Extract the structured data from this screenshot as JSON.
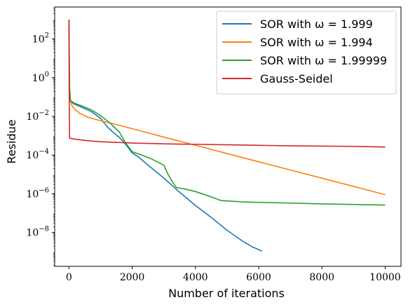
{
  "chart_data": {
    "type": "line",
    "title": "",
    "xlabel": "Number of iterations",
    "ylabel": "Residue",
    "yscale": "log",
    "xlim": [
      -450,
      10500
    ],
    "ylim_log10": [
      -9.75,
      3.65
    ],
    "x_ticks": [
      0,
      2000,
      4000,
      6000,
      8000,
      10000
    ],
    "x_tick_labels": [
      "0",
      "2000",
      "4000",
      "6000",
      "8000",
      "10000"
    ],
    "y_tick_exponents": [
      2,
      0,
      -2,
      -4,
      -6,
      -8
    ],
    "y_tick_labels": [
      "10^2",
      "10^0",
      "10^-2",
      "10^-4",
      "10^-6",
      "10^-8"
    ],
    "legend_position": "top-right",
    "grid": false,
    "series": [
      {
        "name": "SOR with ω = 1.999",
        "color": "#1f77b4",
        "points": [
          [
            0,
            1000
          ],
          [
            20,
            0.3
          ],
          [
            50,
            0.06
          ],
          [
            150,
            0.045
          ],
          [
            400,
            0.03
          ],
          [
            700,
            0.018
          ],
          [
            1000,
            0.008
          ],
          [
            1200,
            0.003
          ],
          [
            1400,
            0.0015
          ],
          [
            1600,
            0.0008
          ],
          [
            1800,
            0.00035
          ],
          [
            2000,
            0.00013
          ],
          [
            2200,
            8e-05
          ],
          [
            2500,
            3e-05
          ],
          [
            3000,
            6.5e-06
          ],
          [
            3500,
            1.2e-06
          ],
          [
            4000,
            2.5e-07
          ],
          [
            4500,
            6e-08
          ],
          [
            5000,
            1.3e-08
          ],
          [
            5500,
            3.5e-09
          ],
          [
            5800,
            1.8e-09
          ],
          [
            6100,
            1.1e-09
          ]
        ]
      },
      {
        "name": "SOR with ω = 1.994",
        "color": "#ff7f0e",
        "points": [
          [
            0,
            1000
          ],
          [
            20,
            0.3
          ],
          [
            50,
            0.06
          ],
          [
            100,
            0.035
          ],
          [
            200,
            0.022
          ],
          [
            350,
            0.014
          ],
          [
            600,
            0.009
          ],
          [
            1000,
            0.006
          ],
          [
            1500,
            0.0038
          ],
          [
            2000,
            0.0023
          ],
          [
            3000,
            0.00085
          ],
          [
            4000,
            0.00032
          ],
          [
            5000,
            0.00012
          ],
          [
            6000,
            4.5e-05
          ],
          [
            7000,
            1.7e-05
          ],
          [
            8000,
            6.4e-06
          ],
          [
            9000,
            2.4e-06
          ],
          [
            10000,
            9e-07
          ]
        ]
      },
      {
        "name": "SOR with ω = 1.99999",
        "color": "#2ca02c",
        "points": [
          [
            0,
            1000
          ],
          [
            20,
            0.3
          ],
          [
            50,
            0.065
          ],
          [
            150,
            0.05
          ],
          [
            400,
            0.035
          ],
          [
            700,
            0.022
          ],
          [
            1000,
            0.011
          ],
          [
            1300,
            0.0045
          ],
          [
            1600,
            0.0015
          ],
          [
            1800,
            0.0004
          ],
          [
            2000,
            0.00015
          ],
          [
            2300,
            0.0001
          ],
          [
            2600,
            6.5e-05
          ],
          [
            3000,
            3e-05
          ],
          [
            3150,
            9e-06
          ],
          [
            3300,
            3.5e-06
          ],
          [
            3400,
            2.1e-06
          ],
          [
            3700,
            1.7e-06
          ],
          [
            4000,
            1.3e-06
          ],
          [
            4300,
            9e-07
          ],
          [
            4600,
            6e-07
          ],
          [
            4800,
            4.5e-07
          ],
          [
            5500,
            3.8e-07
          ],
          [
            6000,
            3.6e-07
          ],
          [
            7000,
            3.3e-07
          ],
          [
            8000,
            3e-07
          ],
          [
            9000,
            2.8e-07
          ],
          [
            10000,
            2.6e-07
          ]
        ]
      },
      {
        "name": "Gauss-Seidel",
        "color": "#d62728",
        "points": [
          [
            0,
            1000
          ],
          [
            10,
            0.1
          ],
          [
            20,
            0.00075
          ],
          [
            100,
            0.0007
          ],
          [
            300,
            0.00063
          ],
          [
            600,
            0.00055
          ],
          [
            1000,
            0.00049
          ],
          [
            2000,
            0.00042
          ],
          [
            3000,
            0.00038
          ],
          [
            4000,
            0.00036
          ],
          [
            5000,
            0.00034
          ],
          [
            6000,
            0.00032
          ],
          [
            7000,
            0.0003
          ],
          [
            8000,
            0.00029
          ],
          [
            9000,
            0.00028
          ],
          [
            10000,
            0.00026
          ]
        ]
      }
    ]
  }
}
